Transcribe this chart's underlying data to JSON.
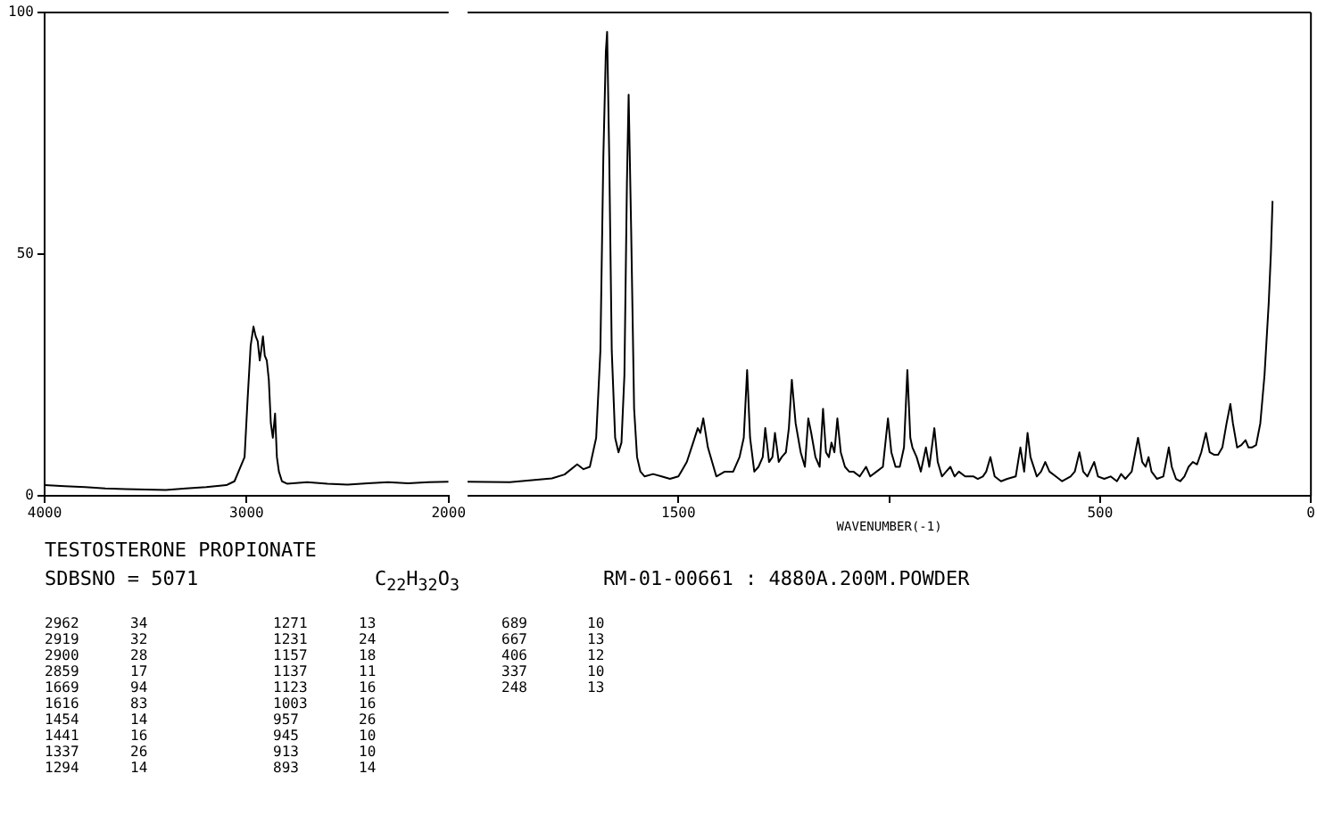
{
  "chart_data": [
    {
      "type": "line",
      "title": "TESTOSTERONE PROPIONATE",
      "subtitle": "SDBSNO = 5071",
      "xlim": [
        4000,
        2000
      ],
      "xticks": [
        4000,
        3000,
        2000
      ],
      "ylim": [
        0,
        100
      ],
      "yticks": [
        0,
        50,
        100
      ],
      "grid": false,
      "legend": false,
      "marker": "none",
      "line_style": "solid",
      "series": [
        {
          "color": "#000000",
          "x": [
            4000,
            3900,
            3800,
            3700,
            3600,
            3500,
            3400,
            3300,
            3200,
            3100,
            3060,
            3040,
            3010,
            2995,
            2980,
            2966,
            2955,
            2945,
            2935,
            2928,
            2919,
            2910,
            2900,
            2890,
            2880,
            2870,
            2859,
            2850,
            2840,
            2825,
            2800,
            2700,
            2600,
            2500,
            2400,
            2300,
            2200,
            2100,
            2000
          ],
          "values": [
            2.2,
            2,
            1.8,
            1.5,
            1.4,
            1.3,
            1.2,
            1.5,
            1.8,
            2.2,
            3,
            5,
            8,
            20,
            31,
            35,
            33,
            32,
            28,
            30,
            33,
            29,
            28,
            24,
            15,
            12,
            17,
            8,
            5,
            3,
            2.5,
            2.8,
            2.5,
            2.3,
            2.6,
            2.8,
            2.6,
            2.8,
            2.9
          ]
        }
      ],
      "annotations": [
        "C$_{22}$H$_{32}$O$_{3}$",
        "RM-01-00661 : 4880A.200M.POWDER",
        "2962 34",
        "2919 32",
        "2900 28",
        "2859 17",
        "1669 94",
        "1616 83",
        "1454 14",
        "1441 16",
        "1337 26",
        "1294 14",
        "1271 13",
        "1231 24",
        "1157 18",
        "1137 11",
        "1123 16",
        "1003 16",
        "957 26",
        "945 10",
        "913 10",
        "893 14",
        "689 10",
        "667 13",
        "406 12",
        "337 10",
        "248 13"
      ]
    },
    {
      "type": "line",
      "xlabel": "WAVENUMBER(-1)",
      "xlim": [
        2000,
        0
      ],
      "xticks": [
        1500,
        {
          "value": 1000,
          "label": null
        },
        500,
        0
      ],
      "ylim": [
        0,
        100
      ],
      "tick_labels": "x",
      "grid": false,
      "legend": false,
      "marker": "none",
      "line_style": "solid",
      "series": [
        {
          "color": "#000000",
          "x": [
            2000,
            1900,
            1800,
            1770,
            1740,
            1725,
            1710,
            1695,
            1685,
            1678,
            1672,
            1669,
            1664,
            1658,
            1650,
            1642,
            1635,
            1628,
            1622,
            1618,
            1612,
            1605,
            1598,
            1590,
            1580,
            1560,
            1540,
            1520,
            1500,
            1480,
            1465,
            1454,
            1448,
            1441,
            1430,
            1410,
            1390,
            1370,
            1355,
            1345,
            1337,
            1330,
            1320,
            1310,
            1300,
            1294,
            1285,
            1277,
            1271,
            1262,
            1255,
            1245,
            1238,
            1231,
            1222,
            1210,
            1200,
            1192,
            1185,
            1175,
            1165,
            1157,
            1150,
            1143,
            1137,
            1130,
            1123,
            1115,
            1105,
            1095,
            1085,
            1070,
            1055,
            1045,
            1030,
            1015,
            1003,
            995,
            985,
            975,
            965,
            957,
            950,
            945,
            935,
            925,
            913,
            905,
            893,
            885,
            875,
            865,
            855,
            845,
            835,
            820,
            800,
            790,
            778,
            770,
            760,
            750,
            735,
            720,
            700,
            689,
            680,
            672,
            665,
            650,
            640,
            630,
            620,
            605,
            590,
            570,
            560,
            549,
            540,
            530,
            514,
            505,
            490,
            475,
            460,
            450,
            440,
            425,
            410,
            400,
            392,
            385,
            378,
            365,
            350,
            337,
            330,
            320,
            310,
            300,
            290,
            280,
            270,
            260,
            249,
            240,
            230,
            220,
            210,
            200,
            191,
            185,
            175,
            165,
            155,
            148,
            140,
            130,
            120,
            110,
            100,
            95,
            91
          ],
          "values": [
            2.9,
            2.8,
            3.6,
            4.4,
            6.5,
            5.5,
            6,
            12,
            30,
            70,
            92,
            96,
            70,
            30,
            12,
            9,
            11,
            25,
            65,
            83,
            55,
            18,
            8,
            5,
            4,
            4.5,
            4,
            3.5,
            4,
            7,
            11,
            14,
            13,
            16,
            10,
            4,
            5,
            5,
            8,
            12,
            26,
            12,
            5,
            6,
            8,
            14,
            7,
            8,
            13,
            7,
            8,
            9,
            14,
            24,
            15,
            9,
            6,
            16,
            13,
            8,
            6,
            18,
            9,
            8,
            11,
            9,
            16,
            9,
            6,
            5,
            5,
            4,
            6,
            4,
            5,
            6,
            16,
            9,
            6,
            6,
            10,
            26,
            12,
            10,
            8,
            5,
            10,
            6,
            14,
            7,
            4,
            5,
            6,
            4,
            5,
            4,
            4,
            3.5,
            4,
            5,
            8,
            4,
            3,
            3.5,
            4,
            10,
            5,
            13,
            8,
            4,
            5,
            7,
            5,
            4,
            3,
            4,
            5,
            9,
            5,
            4,
            7,
            4,
            3.5,
            4,
            3,
            4.5,
            3.5,
            5,
            12,
            7,
            6,
            8,
            5,
            3.5,
            4,
            10,
            6,
            3.5,
            3,
            4,
            6,
            7,
            6.5,
            9,
            13,
            9,
            8.5,
            8.5,
            10,
            15,
            19,
            15,
            10,
            10.5,
            11.5,
            10,
            10,
            10.5,
            15,
            25,
            40,
            50,
            61
          ]
        }
      ]
    }
  ]
}
